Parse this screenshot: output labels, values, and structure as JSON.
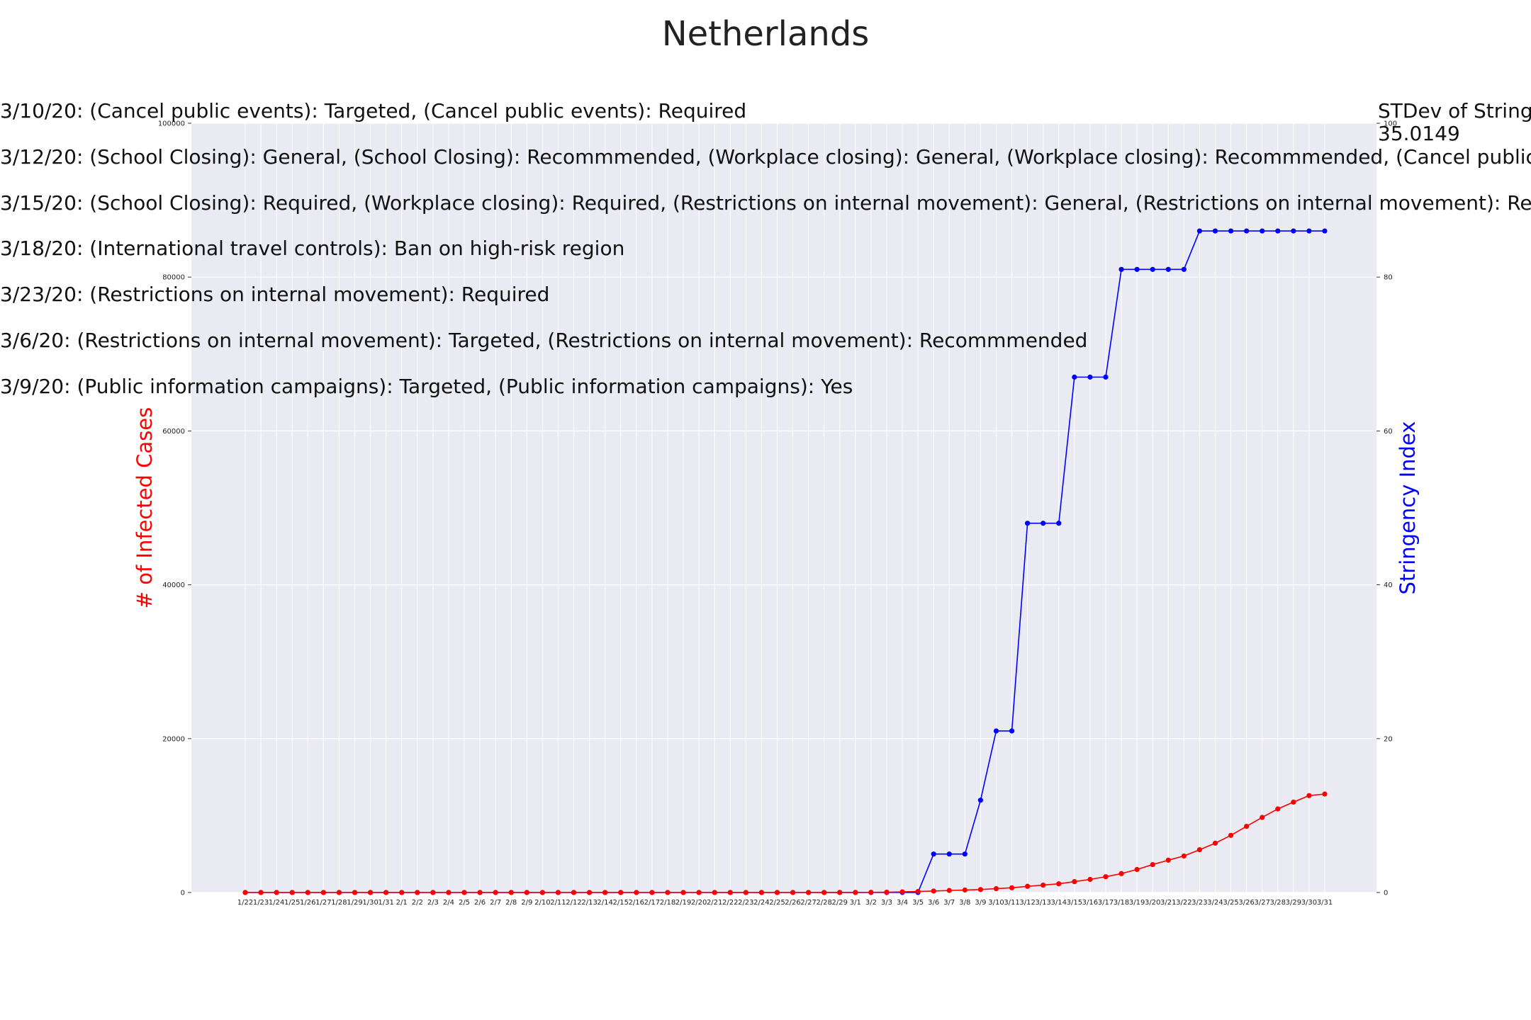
{
  "title": "Netherlands",
  "annotations": [
    "3/10/20: (Cancel public events): Targeted, (Cancel public events): Required",
    "3/12/20: (School Closing): General, (School Closing): Recommmended, (Workplace closing): General, (Workplace closing): Recommmended, (Cancel public event",
    "3/15/20: (School Closing): Required, (Workplace closing): Required, (Restrictions on internal movement): General, (Restrictions on internal movement): Recommm",
    "3/18/20: (International travel controls): Ban on high-risk region",
    "3/23/20: (Restrictions on internal movement): Required",
    "3/6/20: (Restrictions on internal movement): Targeted, (Restrictions on internal movement): Recommmended",
    "3/9/20: (Public information campaigns): Targeted, (Public information campaigns): Yes"
  ],
  "stdev": {
    "label": "STDev of Stringe",
    "value": "35.0149"
  },
  "chart_data": {
    "type": "line",
    "title": "Netherlands",
    "xlabel": "",
    "ylabel_left": "# of Infected Cases",
    "ylabel_right": "Stringency Index",
    "ylim_left": [
      0,
      100000
    ],
    "ylim_right": [
      0,
      100
    ],
    "yticks_left": [
      "0",
      "20000",
      "40000",
      "60000",
      "80000",
      "100000"
    ],
    "yticks_right": [
      "0",
      "20",
      "40",
      "60",
      "80",
      "100"
    ],
    "grid": true,
    "categories": [
      "1/22",
      "1/23",
      "1/24",
      "1/25",
      "1/26",
      "1/27",
      "1/28",
      "1/29",
      "1/30",
      "1/31",
      "2/1",
      "2/2",
      "2/3",
      "2/4",
      "2/5",
      "2/6",
      "2/7",
      "2/8",
      "2/9",
      "2/10",
      "2/11",
      "2/12",
      "2/13",
      "2/14",
      "2/15",
      "2/16",
      "2/17",
      "2/18",
      "2/19",
      "2/20",
      "2/21",
      "2/22",
      "2/23",
      "2/24",
      "2/25",
      "2/26",
      "2/27",
      "2/28",
      "2/29",
      "3/1",
      "3/2",
      "3/3",
      "3/4",
      "3/5",
      "3/6",
      "3/7",
      "3/8",
      "3/9",
      "3/10",
      "3/11",
      "3/12",
      "3/13",
      "3/14",
      "3/15",
      "3/16",
      "3/17",
      "3/18",
      "3/19",
      "3/20",
      "3/21",
      "3/22",
      "3/23",
      "3/24",
      "3/25",
      "3/26",
      "3/27",
      "3/28",
      "3/29",
      "3/30",
      "3/31"
    ],
    "series": [
      {
        "axis": "left",
        "color": "#ff0000",
        "values": [
          0,
          0,
          0,
          0,
          0,
          0,
          0,
          0,
          0,
          0,
          0,
          0,
          0,
          0,
          0,
          0,
          0,
          0,
          0,
          0,
          0,
          0,
          0,
          0,
          0,
          0,
          0,
          0,
          0,
          0,
          0,
          0,
          0,
          0,
          0,
          0,
          1,
          6,
          10,
          18,
          24,
          38,
          82,
          128,
          188,
          265,
          321,
          382,
          503,
          614,
          804,
          959,
          1135,
          1413,
          1705,
          2051,
          2460,
          2994,
          3631,
          4204,
          4749,
          5560,
          6412,
          7431,
          8603,
          9762,
          10866,
          11750,
          12595,
          12800
        ]
      },
      {
        "axis": "right",
        "color": "#0000ff",
        "values": [
          0,
          0,
          0,
          0,
          0,
          0,
          0,
          0,
          0,
          0,
          0,
          0,
          0,
          0,
          0,
          0,
          0,
          0,
          0,
          0,
          0,
          0,
          0,
          0,
          0,
          0,
          0,
          0,
          0,
          0,
          0,
          0,
          0,
          0,
          0,
          0,
          0,
          0,
          0,
          0,
          0,
          0,
          0,
          0,
          5,
          5,
          5,
          12,
          21,
          21,
          48,
          48,
          48,
          67,
          67,
          67,
          81,
          81,
          81,
          81,
          81,
          86,
          86,
          86,
          86,
          86,
          86,
          86,
          86,
          86
        ]
      }
    ]
  }
}
